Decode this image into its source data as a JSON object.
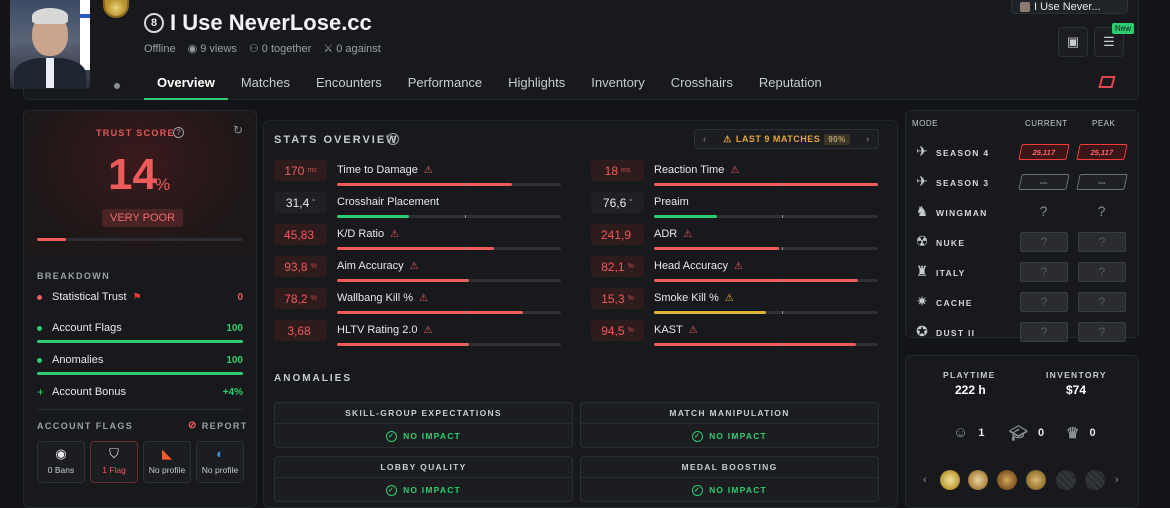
{
  "profile": {
    "name": "I Use NeverLose.cc",
    "level": "8",
    "status": "Offline",
    "views": "9 views",
    "together": "0 together",
    "against": "0 against"
  },
  "user_chip": "I Use Never...",
  "new_badge": "New",
  "tabs": [
    "Overview",
    "Matches",
    "Encounters",
    "Performance",
    "Highlights",
    "Inventory",
    "Crosshairs",
    "Reputation"
  ],
  "trust": {
    "title": "TRUST SCORE",
    "value": "14",
    "value_fraction": 0.14,
    "pct_sign": "%",
    "rating": "VERY POOR"
  },
  "breakdown": {
    "title": "BREAKDOWN",
    "rows": [
      {
        "label": "Statistical Trust",
        "value": "0",
        "color": "#ef5b5b"
      },
      {
        "label": "Account Flags",
        "value": "100",
        "color": "#2ecc71"
      },
      {
        "label": "Anomalies",
        "value": "100",
        "color": "#2ecc71"
      },
      {
        "label": "Account Bonus",
        "value": "+4%",
        "color": "#2ecc71"
      }
    ]
  },
  "account_flags": {
    "title": "ACCOUNT FLAGS",
    "report": "REPORT",
    "items": [
      {
        "label": "0 Bans",
        "icon": "steam-icon"
      },
      {
        "label": "1 Flag",
        "icon": "faceit-icon"
      },
      {
        "label": "No profile",
        "icon": "esea-icon"
      },
      {
        "label": "No profile",
        "icon": "gamersclub-icon"
      }
    ]
  },
  "stats": {
    "title": "STATS OVERVIEW",
    "range": "LAST 9 MATCHES",
    "range_pct": "90%",
    "left": [
      {
        "label": "Time to Damage",
        "value": "170",
        "unit": "ms",
        "bad": true,
        "warn": "red",
        "fill": 0.78,
        "color": "#ef5b5b"
      },
      {
        "label": "Crosshair Placement",
        "value": "31,4",
        "unit": "°",
        "bad": false,
        "warn": "",
        "fill": 0.32,
        "color": "#2ecc71"
      },
      {
        "label": "K/D Ratio",
        "value": "45,83",
        "unit": "",
        "bad": true,
        "warn": "red",
        "fill": 0.7,
        "color": "#ef5b5b"
      },
      {
        "label": "Aim Accuracy",
        "value": "93,8",
        "unit": "%",
        "bad": true,
        "warn": "red",
        "fill": 0.59,
        "color": "#ef5b5b"
      },
      {
        "label": "Wallbang Kill %",
        "value": "78,2",
        "unit": "%",
        "bad": true,
        "warn": "red",
        "fill": 0.83,
        "color": "#ef5b5b"
      },
      {
        "label": "HLTV Rating 2.0",
        "value": "3,68",
        "unit": "",
        "bad": true,
        "warn": "red",
        "fill": 0.59,
        "color": "#ef5b5b"
      }
    ],
    "right": [
      {
        "label": "Reaction Time",
        "value": "18",
        "unit": "ms",
        "bad": true,
        "warn": "red",
        "fill": 1.0,
        "color": "#ef5b5b"
      },
      {
        "label": "Preaim",
        "value": "76,6",
        "unit": "°",
        "bad": false,
        "warn": "",
        "fill": 0.28,
        "color": "#2ecc71"
      },
      {
        "label": "ADR",
        "value": "241,9",
        "unit": "",
        "bad": true,
        "warn": "red",
        "fill": 0.56,
        "color": "#ef5b5b"
      },
      {
        "label": "Head Accuracy",
        "value": "82,1",
        "unit": "%",
        "bad": true,
        "warn": "red",
        "fill": 0.91,
        "color": "#ef5b5b"
      },
      {
        "label": "Smoke Kill %",
        "value": "15,3",
        "unit": "%",
        "bad": true,
        "warn": "yellow",
        "fill": 0.5,
        "color": "#e0b43a"
      },
      {
        "label": "KAST",
        "value": "94,5",
        "unit": "%",
        "bad": true,
        "warn": "red",
        "fill": 0.9,
        "color": "#ef5b5b"
      }
    ]
  },
  "anomalies": {
    "title": "ANOMALIES",
    "items": [
      {
        "label": "SKILL-GROUP EXPECTATIONS",
        "result": "NO IMPACT"
      },
      {
        "label": "MATCH MANIPULATION",
        "result": "NO IMPACT"
      },
      {
        "label": "LOBBY QUALITY",
        "result": "NO IMPACT"
      },
      {
        "label": "MEDAL BOOSTING",
        "result": "NO IMPACT"
      }
    ]
  },
  "ranks": {
    "headers": {
      "mode": "MODE",
      "current": "CURRENT",
      "peak": "PEAK"
    },
    "rows": [
      {
        "mode": "SEASON 4",
        "current": "25,117",
        "peak": "25,117",
        "type": "red",
        "icon": "premier-icon"
      },
      {
        "mode": "SEASON 3",
        "current": "---",
        "peak": "---",
        "type": "grey",
        "icon": "premier-icon"
      },
      {
        "mode": "WINGMAN",
        "current": "?",
        "peak": "?",
        "type": "wing",
        "icon": "wingman-icon"
      },
      {
        "mode": "NUKE",
        "current": "?",
        "peak": "?",
        "type": "map",
        "icon": "nuke-icon"
      },
      {
        "mode": "ITALY",
        "current": "?",
        "peak": "?",
        "type": "map",
        "icon": "italy-icon"
      },
      {
        "mode": "CACHE",
        "current": "?",
        "peak": "?",
        "type": "map",
        "icon": "cache-icon"
      },
      {
        "mode": "DUST II",
        "current": "?",
        "peak": "?",
        "type": "map",
        "icon": "dust2-icon"
      }
    ]
  },
  "info": {
    "playtime_label": "PLAYTIME",
    "playtime": "222 h",
    "inventory_label": "INVENTORY",
    "inventory": "$74",
    "counters": [
      {
        "icon": "smile-icon",
        "value": "1"
      },
      {
        "icon": "grad-cap-icon",
        "value": "0"
      },
      {
        "icon": "crown-icon",
        "value": "0"
      }
    ]
  }
}
